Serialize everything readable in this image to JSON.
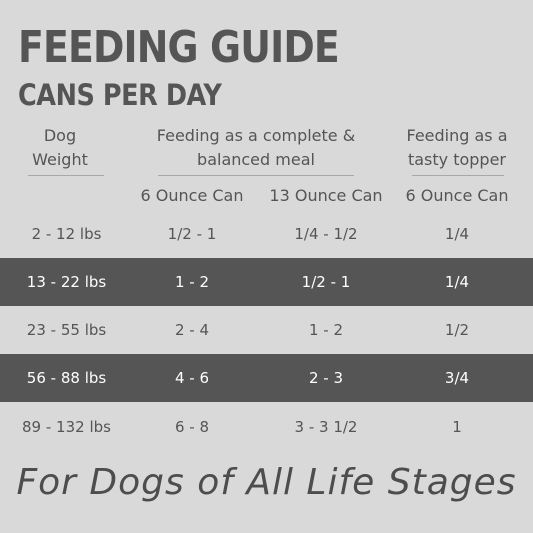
{
  "title": "FEEDING GUIDE",
  "subtitle": "CANS PER DAY",
  "headers": {
    "weight": [
      "Dog",
      "Weight"
    ],
    "complete": [
      "Feeding as a complete &",
      "balanced meal"
    ],
    "topper": [
      "Feeding as a",
      "tasty topper"
    ]
  },
  "subheaders": [
    "6 Ounce Can",
    "13 Ounce Can",
    "6 Ounce Can"
  ],
  "rows": [
    [
      "2 - 12 lbs",
      "1/2 - 1",
      "1/4 - 1/2",
      "1/4"
    ],
    [
      "13 - 22 lbs",
      "1 - 2",
      "1/2 - 1",
      "1/4"
    ],
    [
      "23 - 55 lbs",
      "2 - 4",
      "1 - 2",
      "1/2"
    ],
    [
      "56 - 88 lbs",
      "4 - 6",
      "2 - 3",
      "3/4"
    ],
    [
      "89 - 132 lbs",
      "6 - 8",
      "3 - 3 1/2",
      "1"
    ]
  ],
  "footer": "For Dogs of All Life Stages",
  "colors": {
    "background": "#d9d9d9",
    "band": "#555555",
    "text": "#555555"
  }
}
